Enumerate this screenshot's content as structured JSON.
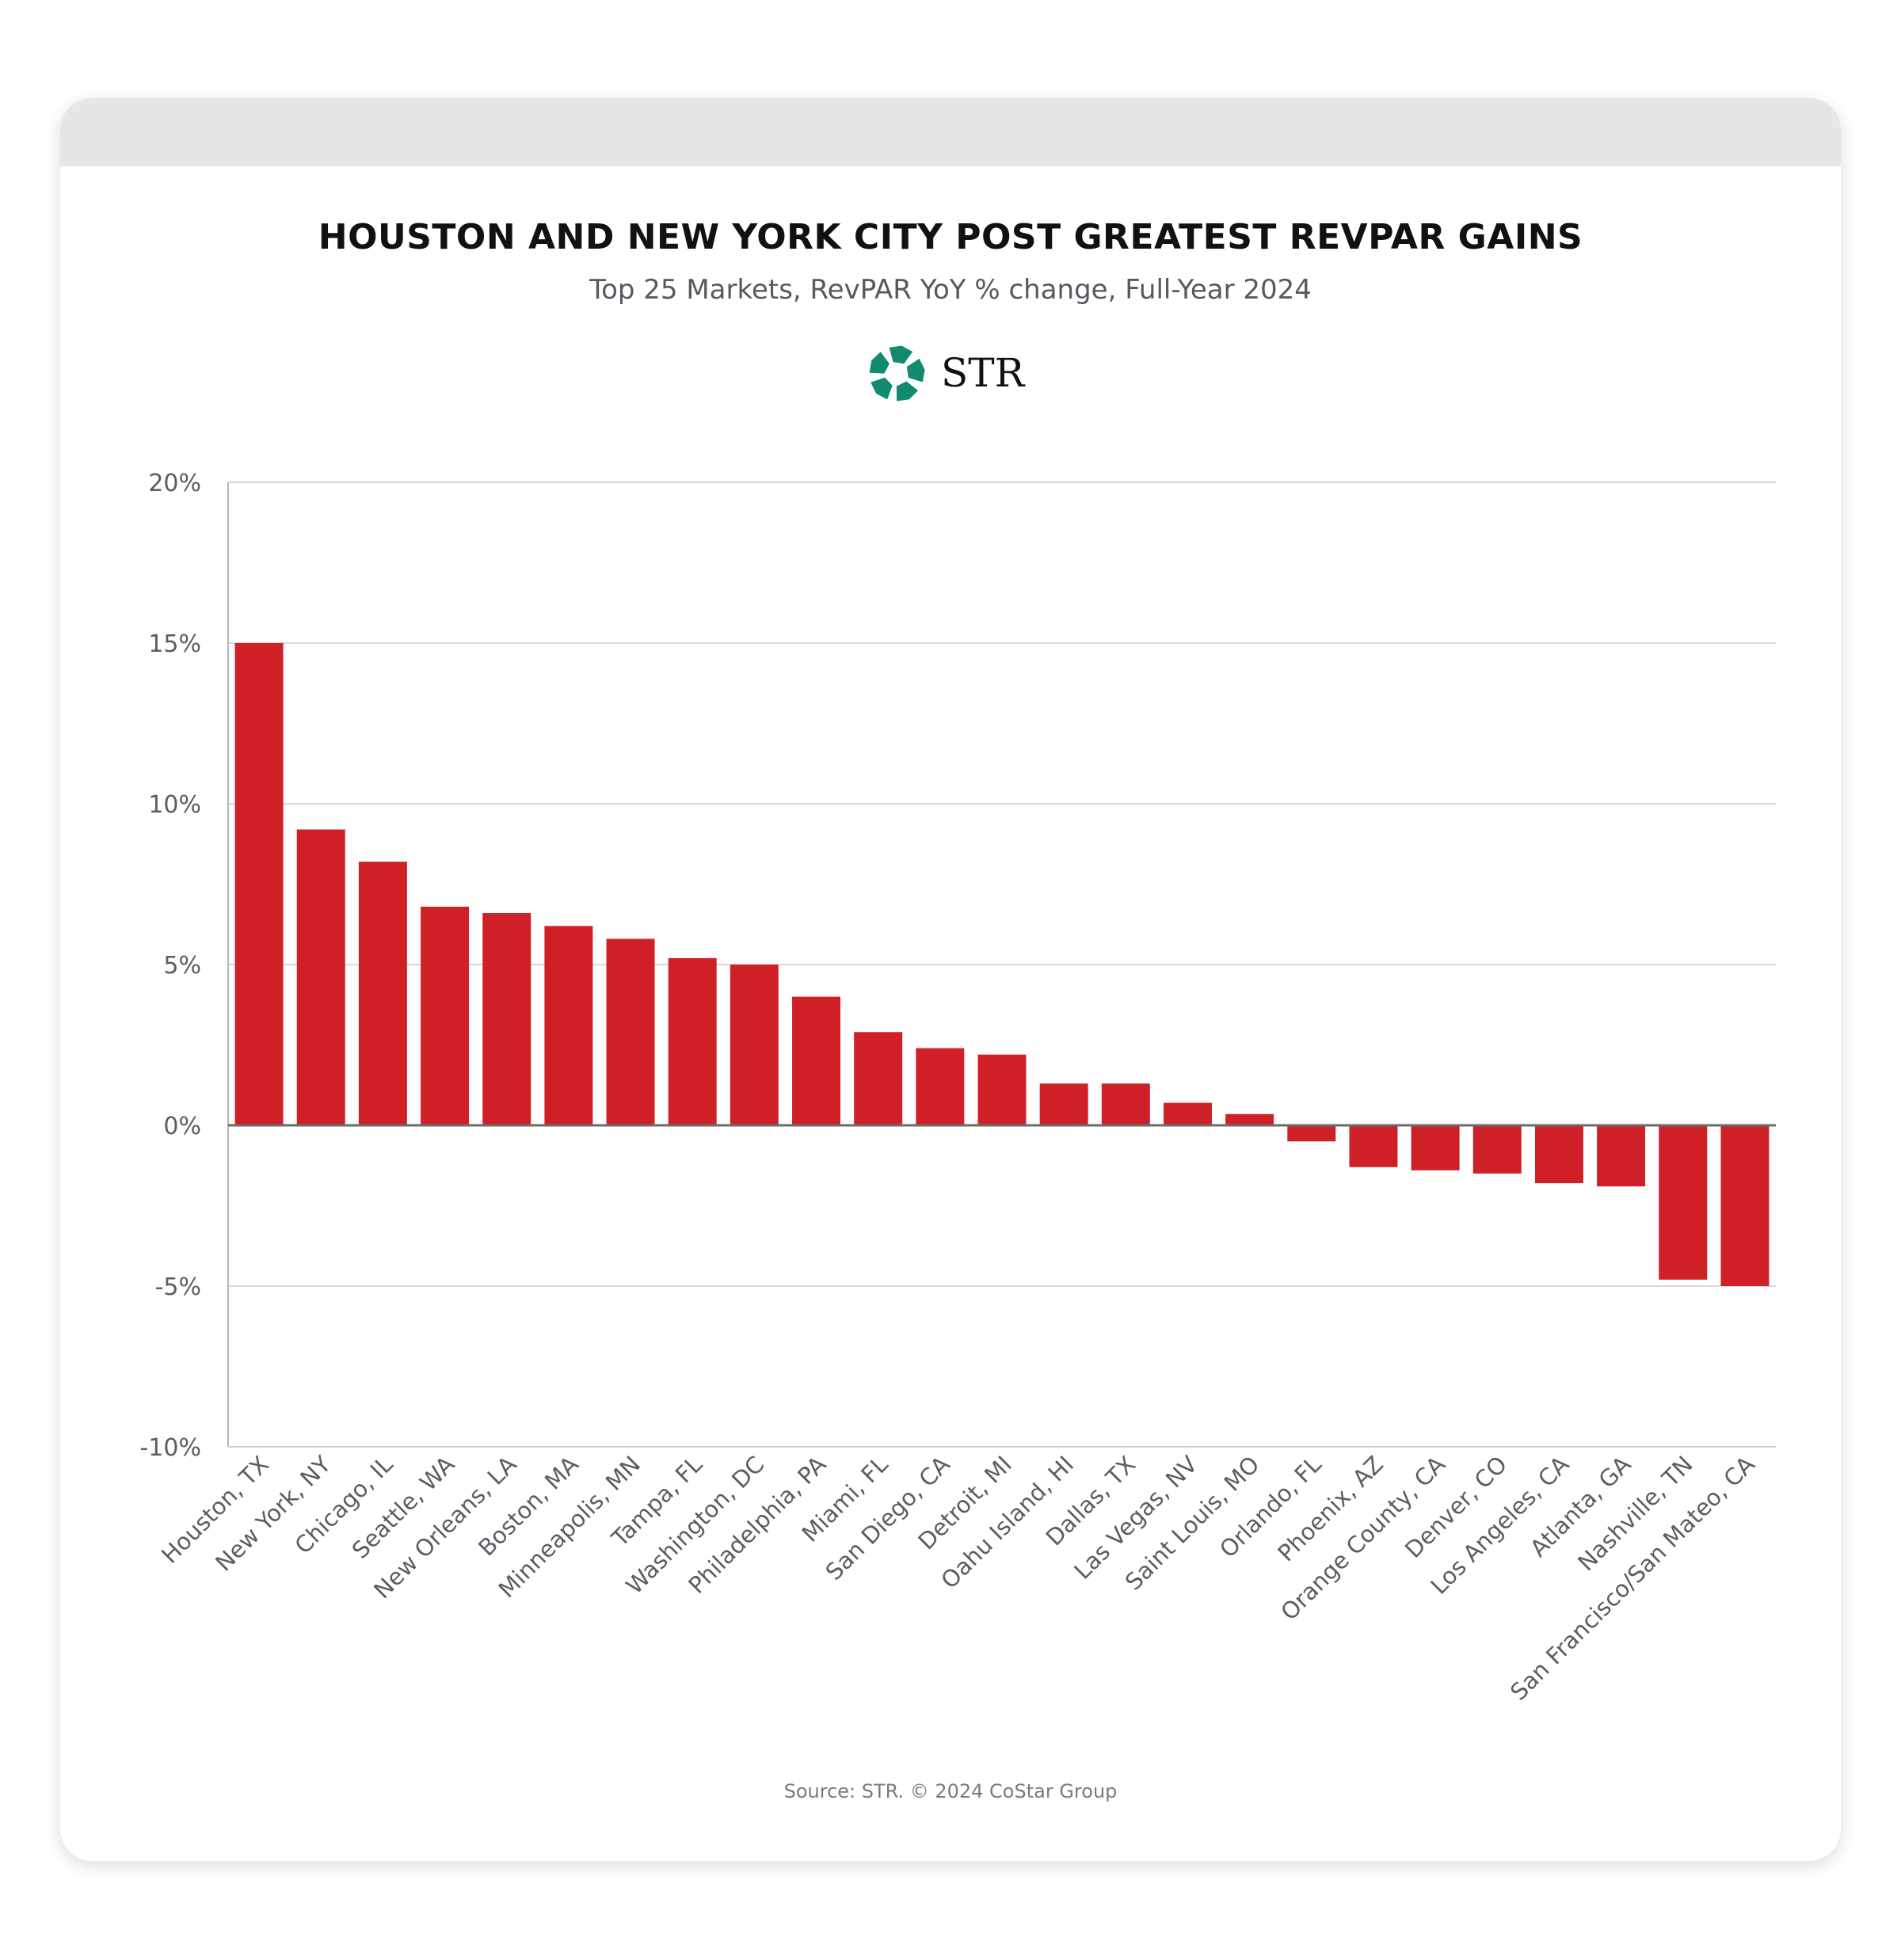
{
  "chart_data": {
    "type": "bar",
    "title": "HOUSTON AND NEW YORK CITY POST GREATEST REVPAR GAINS",
    "subtitle": "Top 25 Markets, RevPAR YoY % change, Full-Year 2024",
    "xlabel": "",
    "ylabel": "",
    "ylim": [
      -10,
      20
    ],
    "yticks": [
      20,
      15,
      10,
      5,
      0,
      -5,
      -10
    ],
    "ytick_labels": [
      "20%",
      "15%",
      "10%",
      "5%",
      "0%",
      "-5%",
      "-10%"
    ],
    "grid": "horizontal",
    "bar_color": "#cf2027",
    "categories": [
      "Houston, TX",
      "New York, NY",
      "Chicago, IL",
      "Seattle, WA",
      "New Orleans, LA",
      "Boston, MA",
      "Minneapolis, MN",
      "Tampa, FL",
      "Washington, DC",
      "Philadelphia, PA",
      "Miami, FL",
      "San Diego, CA",
      "Detroit, MI",
      "Oahu Island, HI",
      "Dallas, TX",
      "Las Vegas, NV",
      "Saint Louis, MO",
      "Orlando, FL",
      "Phoenix, AZ",
      "Orange County, CA",
      "Denver, CO",
      "Los Angeles, CA",
      "Atlanta, GA",
      "Nashville, TN",
      "San Francisco/San Mateo, CA"
    ],
    "values": [
      15.0,
      9.2,
      8.2,
      6.8,
      6.6,
      6.2,
      5.8,
      5.2,
      5.0,
      4.0,
      2.9,
      2.4,
      2.2,
      1.3,
      1.3,
      0.7,
      0.35,
      -0.5,
      -1.3,
      -1.4,
      -1.5,
      -1.8,
      -1.9,
      -4.8,
      -5.0
    ]
  },
  "logo": {
    "text": "STR",
    "color": "#128a6f"
  },
  "source": "Source: STR. © 2024 CoStar Group"
}
